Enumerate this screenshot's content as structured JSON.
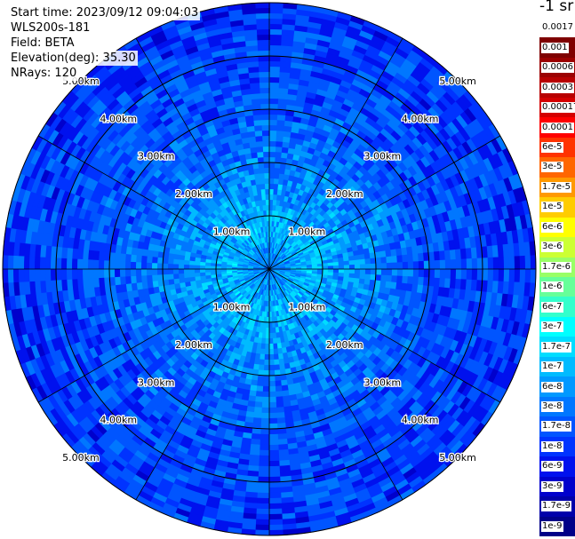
{
  "header": {
    "start_time": "Start time: 2023/09/12 09:04:03",
    "instrument": "WLS200s-181",
    "field": "Field: BETA",
    "elevation": "Elevation(deg): 35.30",
    "nrays": "NRays: 120"
  },
  "chart_data": {
    "type": "heatmap",
    "projection": "polar",
    "field": "BETA",
    "max_range_km": 5.0,
    "range_rings_km": [
      1,
      2,
      3,
      4,
      5
    ],
    "ring_labels": [
      "1.00km",
      "2.00km",
      "3.00km",
      "4.00km",
      "5.00km"
    ],
    "spokes_deg": [
      0,
      30,
      60,
      90,
      120,
      150,
      180,
      210,
      240,
      270,
      300,
      330
    ],
    "nrays": 120,
    "radial_profile": [
      {
        "range_km": 0.0,
        "value": "6e-8"
      },
      {
        "range_km": 0.7,
        "value": "1.7e-7"
      },
      {
        "range_km": 2.0,
        "value": "6e-8"
      },
      {
        "range_km": 3.0,
        "value": "3e-8"
      },
      {
        "range_km": 5.0,
        "value": "1.7e-8"
      }
    ],
    "colorbar": {
      "unit_label": "-1 sr",
      "labels": [
        "0.0017",
        "0.001",
        "0.0006",
        "0.0003",
        "0.00017",
        "0.0001",
        "6e-5",
        "3e-5",
        "1.7e-5",
        "1e-5",
        "6e-6",
        "3e-6",
        "1.7e-6",
        "1e-6",
        "6e-7",
        "3e-7",
        "1.7e-7",
        "1e-7",
        "6e-8",
        "3e-8",
        "1.7e-8",
        "1e-8",
        "6e-9",
        "3e-9",
        "1.7e-9",
        "1e-9"
      ],
      "colors": [
        "#ffffff",
        "#7f0000",
        "#9b0000",
        "#b80000",
        "#d40000",
        "#ff0000",
        "#ff3300",
        "#ff6600",
        "#ff9900",
        "#ffcc00",
        "#ffff00",
        "#ccff33",
        "#99ff66",
        "#66ff99",
        "#33ffcc",
        "#00ffff",
        "#00ddff",
        "#00bbff",
        "#0099ff",
        "#0077ff",
        "#0055ff",
        "#0033ff",
        "#0011ee",
        "#0000cc",
        "#0000aa",
        "#000088"
      ]
    }
  }
}
